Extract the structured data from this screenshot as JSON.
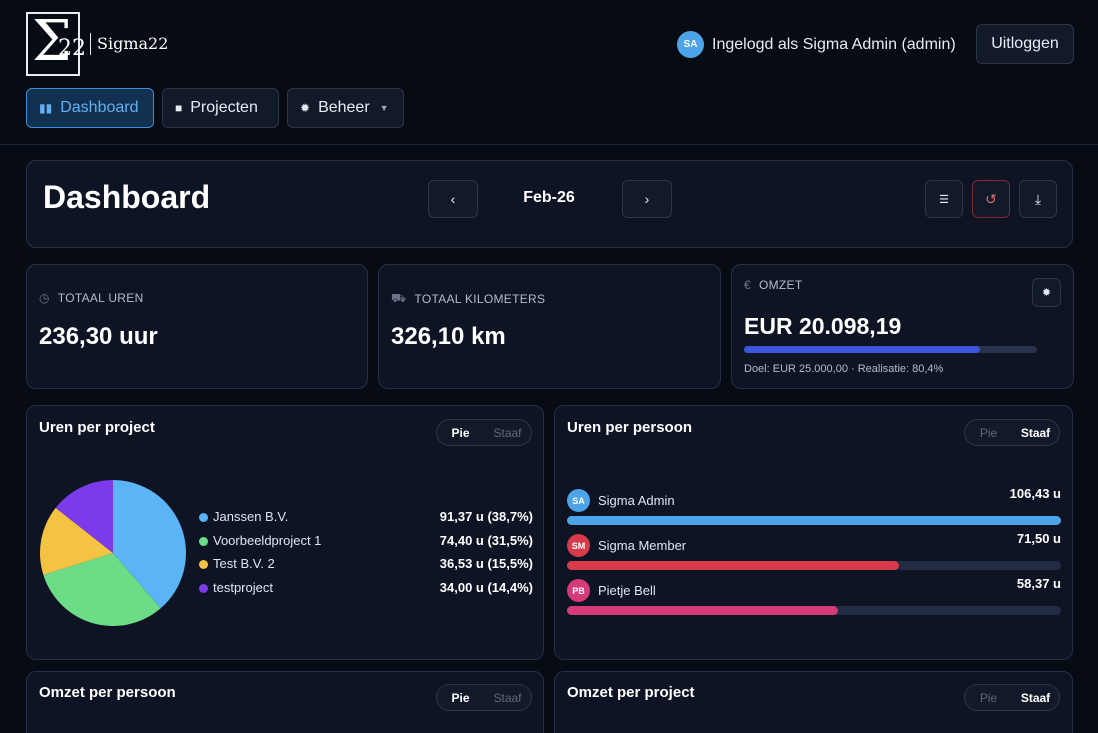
{
  "app": {
    "logo_symbol": "Σ",
    "logo_number": "22",
    "brand_name": "Sigma22"
  },
  "user": {
    "initials": "SA",
    "status_text": "Ingelogd als Sigma Admin (admin)",
    "logout_label": "Uitloggen"
  },
  "nav": [
    {
      "label": "Dashboard",
      "icon": "dashboard-icon",
      "active": true
    },
    {
      "label": "Projecten",
      "icon": "folder-icon",
      "active": false
    },
    {
      "label": "Beheer",
      "icon": "gear-icon",
      "active": false
    }
  ],
  "dashboard": {
    "title": "Dashboard",
    "month": "Feb-26",
    "prev_icon": "chevron-left-icon",
    "next_icon": "chevron-right-icon",
    "actions": [
      "filter-icon",
      "reset-icon",
      "download-icon"
    ]
  },
  "stats": {
    "hours": {
      "label": "TOTAAL UREN",
      "value": "236,30 uur",
      "icon": "clock-icon"
    },
    "km": {
      "label": "TOTAAL KILOMETERS",
      "value": "326,10 km",
      "icon": "car-icon"
    },
    "revenue": {
      "label": "OMZET",
      "value": "EUR 20.098,19",
      "icon": "euro-icon",
      "progress": 0.804,
      "note": "Doel: EUR 25.000,00 · Realisatie: 80,4%"
    }
  },
  "toggle": {
    "pie": "Pie",
    "bar": "Staaf"
  },
  "hours_per_project": {
    "title": "Uren per project",
    "mode": "pie",
    "items": [
      {
        "name": "Janssen B.V.",
        "value_text": "91,37 u (38,7%)",
        "value": 91.37,
        "color": "#5ab4f6"
      },
      {
        "name": "Voorbeeldproject 1",
        "value_text": "74,40 u (31,5%)",
        "value": 74.4,
        "color": "#6cdc86"
      },
      {
        "name": "Test B.V. 2",
        "value_text": "36,53 u (15,5%)",
        "value": 36.53,
        "color": "#f5c343"
      },
      {
        "name": "testproject",
        "value_text": "34,00 u (14,4%)",
        "value": 34.0,
        "color": "#7c3aea"
      }
    ]
  },
  "hours_per_person": {
    "title": "Uren per persoon",
    "mode": "bar",
    "max": 106.43,
    "items": [
      {
        "initials": "SA",
        "name": "Sigma Admin",
        "value_text": "106,43 u",
        "value": 106.43,
        "color": "#4da3e8"
      },
      {
        "initials": "SM",
        "name": "Sigma Member",
        "value_text": "71,50 u",
        "value": 71.5,
        "color": "#d63a4b"
      },
      {
        "initials": "PB",
        "name": "Pietje Bell",
        "value_text": "58,37 u",
        "value": 58.37,
        "color": "#d63a78"
      }
    ]
  },
  "revenue_per_person": {
    "title": "Omzet per persoon",
    "mode": "pie"
  },
  "revenue_per_project": {
    "title": "Omzet per project",
    "mode": "bar"
  }
}
